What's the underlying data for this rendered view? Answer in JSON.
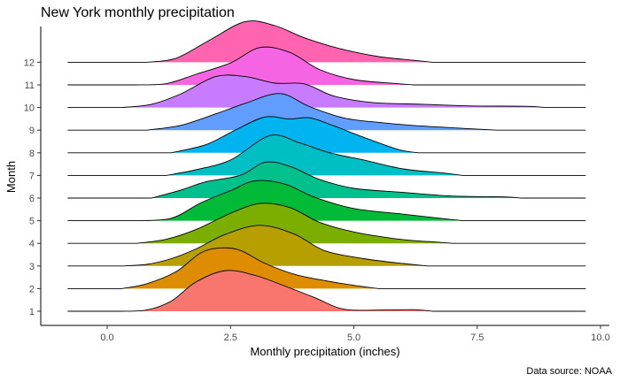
{
  "chart_data": {
    "type": "ridgeline",
    "title": "New York monthly precipitation",
    "caption": "Data source: NOAA",
    "xlabel": "Monthly precipitation (inches)",
    "ylabel": "Month",
    "xlim": [
      -0.8,
      9.7
    ],
    "x_ticks": [
      0.0,
      2.5,
      5.0,
      7.5,
      10.0
    ],
    "x_tick_labels": [
      "0.0",
      "2.5",
      "5.0",
      "7.5",
      "10.0"
    ],
    "categories": [
      "1",
      "2",
      "3",
      "4",
      "5",
      "6",
      "7",
      "8",
      "9",
      "10",
      "11",
      "12"
    ],
    "grid": false,
    "legend": "none",
    "series": [
      {
        "category": "1",
        "color": "#F8766D",
        "profile": [
          [
            0.3,
            0
          ],
          [
            0.8,
            0.03
          ],
          [
            1.3,
            0.25
          ],
          [
            1.8,
            0.72
          ],
          [
            2.4,
            1.0
          ],
          [
            3.0,
            0.88
          ],
          [
            3.6,
            0.62
          ],
          [
            4.2,
            0.34
          ],
          [
            4.8,
            0.05
          ],
          [
            5.6,
            0.03
          ],
          [
            6.2,
            0.04
          ],
          [
            6.6,
            0
          ]
        ]
      },
      {
        "category": "2",
        "color": "#DE8C00",
        "profile": [
          [
            0.3,
            0
          ],
          [
            0.8,
            0.12
          ],
          [
            1.4,
            0.42
          ],
          [
            1.9,
            0.88
          ],
          [
            2.3,
            1.0
          ],
          [
            2.7,
            0.94
          ],
          [
            3.2,
            0.62
          ],
          [
            3.8,
            0.35
          ],
          [
            4.4,
            0.2
          ],
          [
            5.0,
            0.08
          ],
          [
            5.5,
            0
          ]
        ]
      },
      {
        "category": "3",
        "color": "#B79F00",
        "profile": [
          [
            0.3,
            0
          ],
          [
            0.8,
            0.04
          ],
          [
            1.3,
            0.18
          ],
          [
            1.8,
            0.42
          ],
          [
            2.4,
            0.78
          ],
          [
            3.1,
            1.0
          ],
          [
            3.8,
            0.78
          ],
          [
            4.4,
            0.38
          ],
          [
            5.2,
            0.18
          ],
          [
            6.0,
            0.06
          ],
          [
            6.5,
            0
          ]
        ]
      },
      {
        "category": "4",
        "color": "#7CAE00",
        "profile": [
          [
            0.6,
            0
          ],
          [
            1.2,
            0.1
          ],
          [
            1.8,
            0.34
          ],
          [
            2.5,
            0.74
          ],
          [
            3.1,
            0.98
          ],
          [
            3.7,
            0.88
          ],
          [
            4.3,
            0.52
          ],
          [
            5.0,
            0.28
          ],
          [
            5.8,
            0.12
          ],
          [
            6.3,
            0.06
          ],
          [
            6.6,
            0.04
          ],
          [
            7.0,
            0
          ]
        ]
      },
      {
        "category": "5",
        "color": "#00BA38",
        "profile": [
          [
            0.6,
            0
          ],
          [
            1.3,
            0.06
          ],
          [
            1.9,
            0.44
          ],
          [
            2.5,
            0.74
          ],
          [
            3.0,
            0.98
          ],
          [
            3.6,
            0.9
          ],
          [
            4.2,
            0.58
          ],
          [
            5.0,
            0.3
          ],
          [
            6.0,
            0.16
          ],
          [
            7.2,
            0
          ]
        ]
      },
      {
        "category": "6",
        "color": "#00C08B",
        "profile": [
          [
            0.9,
            0
          ],
          [
            1.5,
            0.2
          ],
          [
            2.0,
            0.4
          ],
          [
            2.7,
            0.56
          ],
          [
            3.2,
            0.88
          ],
          [
            3.7,
            0.78
          ],
          [
            4.3,
            0.46
          ],
          [
            5.0,
            0.24
          ],
          [
            6.0,
            0.14
          ],
          [
            7.0,
            0.05
          ],
          [
            8.0,
            0.03
          ],
          [
            8.4,
            0
          ]
        ]
      },
      {
        "category": "7",
        "color": "#00BFC4",
        "profile": [
          [
            1.2,
            0
          ],
          [
            1.8,
            0.14
          ],
          [
            2.5,
            0.38
          ],
          [
            3.3,
            0.98
          ],
          [
            3.9,
            0.8
          ],
          [
            4.5,
            0.56
          ],
          [
            5.2,
            0.38
          ],
          [
            6.0,
            0.16
          ],
          [
            6.8,
            0.06
          ],
          [
            7.2,
            0
          ]
        ]
      },
      {
        "category": "8",
        "color": "#00B4F0",
        "profile": [
          [
            1.3,
            0
          ],
          [
            2.0,
            0.2
          ],
          [
            2.6,
            0.56
          ],
          [
            3.2,
            0.88
          ],
          [
            3.7,
            0.83
          ],
          [
            4.1,
            0.86
          ],
          [
            4.6,
            0.66
          ],
          [
            5.2,
            0.38
          ],
          [
            5.9,
            0.08
          ],
          [
            6.3,
            0
          ]
        ]
      },
      {
        "category": "9",
        "color": "#619CFF",
        "profile": [
          [
            0.8,
            0
          ],
          [
            1.5,
            0.12
          ],
          [
            2.2,
            0.4
          ],
          [
            2.8,
            0.66
          ],
          [
            3.5,
            0.9
          ],
          [
            4.1,
            0.58
          ],
          [
            4.8,
            0.3
          ],
          [
            5.6,
            0.18
          ],
          [
            6.4,
            0.1
          ],
          [
            7.3,
            0.04
          ],
          [
            7.9,
            0
          ]
        ]
      },
      {
        "category": "10",
        "color": "#C77CFF",
        "profile": [
          [
            0.3,
            0
          ],
          [
            0.9,
            0.08
          ],
          [
            1.5,
            0.34
          ],
          [
            2.2,
            0.76
          ],
          [
            2.8,
            0.76
          ],
          [
            3.4,
            0.6
          ],
          [
            4.0,
            0.58
          ],
          [
            4.6,
            0.28
          ],
          [
            5.4,
            0.12
          ],
          [
            6.4,
            0.08
          ],
          [
            7.4,
            0.04
          ],
          [
            8.5,
            0.03
          ],
          [
            8.9,
            0
          ]
        ]
      },
      {
        "category": "11",
        "color": "#F564E3",
        "profile": [
          [
            0.6,
            0
          ],
          [
            1.2,
            0.03
          ],
          [
            1.8,
            0.26
          ],
          [
            2.5,
            0.54
          ],
          [
            3.1,
            0.92
          ],
          [
            3.7,
            0.8
          ],
          [
            4.3,
            0.38
          ],
          [
            5.0,
            0.13
          ],
          [
            5.8,
            0.04
          ],
          [
            6.2,
            0
          ]
        ]
      },
      {
        "category": "12",
        "color": "#FF64B0",
        "profile": [
          [
            0.8,
            0
          ],
          [
            1.4,
            0.1
          ],
          [
            2.1,
            0.56
          ],
          [
            2.8,
            1.0
          ],
          [
            3.4,
            0.9
          ],
          [
            4.0,
            0.6
          ],
          [
            4.7,
            0.34
          ],
          [
            5.5,
            0.14
          ],
          [
            6.2,
            0.05
          ],
          [
            6.6,
            0
          ]
        ]
      }
    ]
  }
}
